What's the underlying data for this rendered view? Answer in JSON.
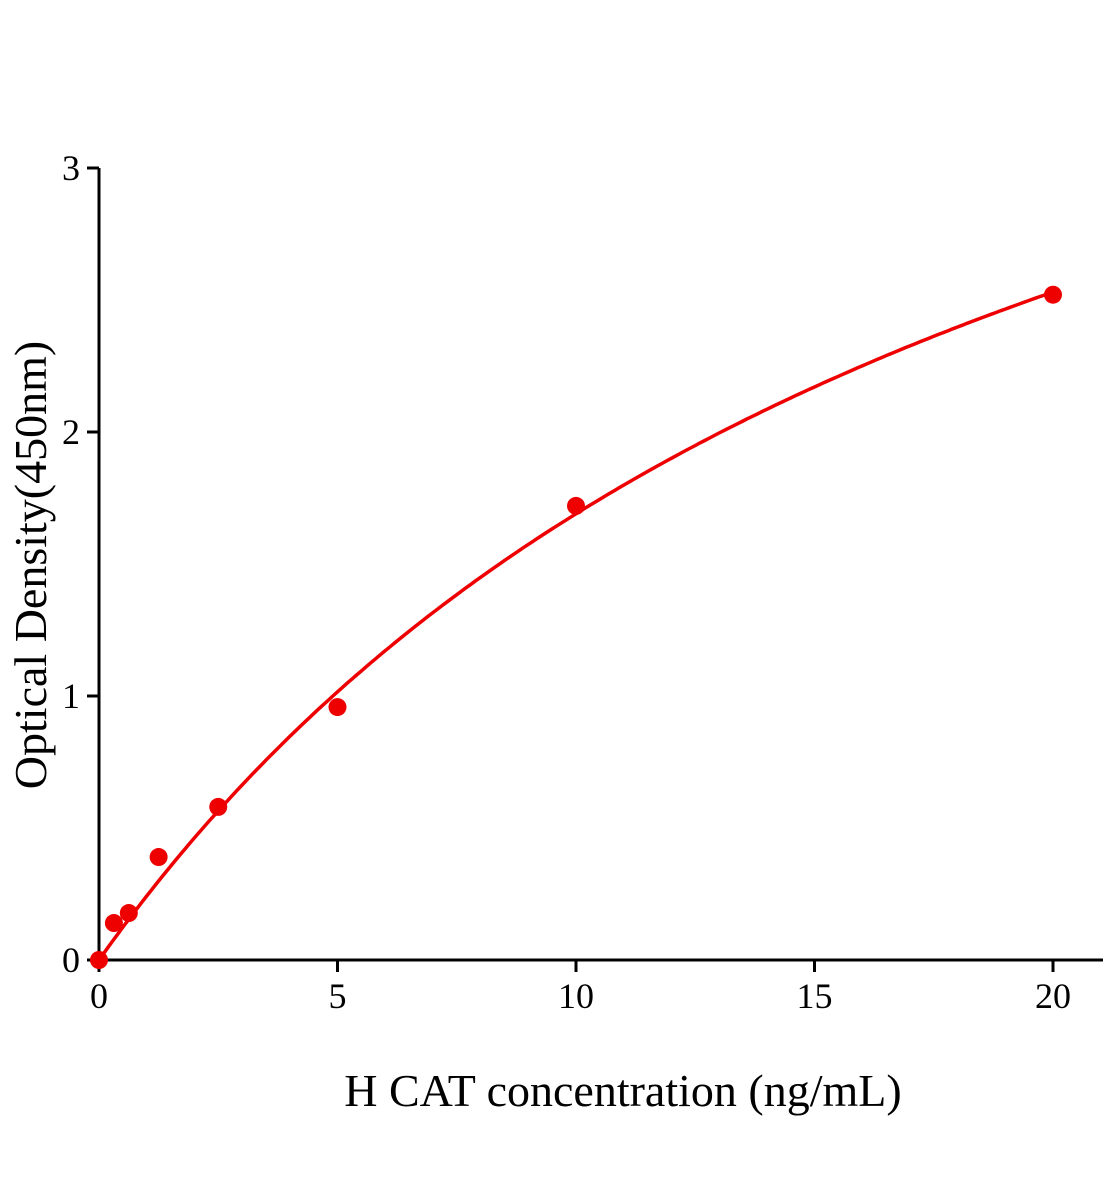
{
  "chart_data": {
    "type": "scatter",
    "title": "",
    "xlabel": "H CAT concentration (ng/mL)",
    "ylabel": "Optical Density(450nm)",
    "xlim": [
      0,
      21
    ],
    "ylim": [
      0,
      3
    ],
    "xticks": [
      "0",
      "5",
      "10",
      "15",
      "20"
    ],
    "yticks": [
      "0",
      "1",
      "2",
      "3"
    ],
    "grid": false,
    "legend": "none",
    "series": [
      {
        "x": [
          0,
          0.3125,
          0.625,
          1.25,
          2.5,
          5,
          10,
          20
        ],
        "y": [
          0,
          0.14,
          0.178,
          0.39,
          0.58,
          0.958,
          1.72,
          2.52
        ],
        "marker": "circle",
        "color": "#ee0000",
        "fit_line": "smooth curve"
      }
    ]
  }
}
